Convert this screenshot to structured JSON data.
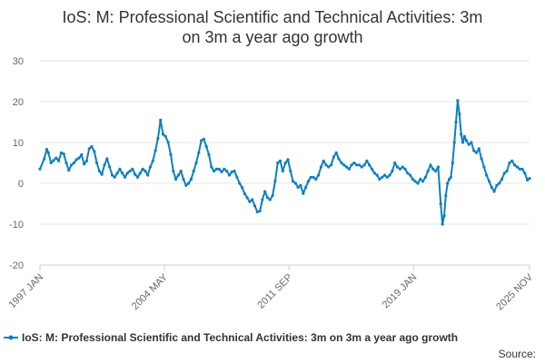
{
  "chart_data": {
    "type": "line",
    "title": "IoS: M: Professional Scientific and Technical Activities: 3m on 3m a year ago growth",
    "title_lines": [
      "IoS: M: Professional Scientific and Technical Activities: 3m",
      "on 3m a year ago growth"
    ],
    "xlabel": "",
    "ylabel": "",
    "ylim": [
      -20,
      30
    ],
    "yticks": [
      30,
      20,
      10,
      0,
      -10,
      -20
    ],
    "x_range": [
      1997.0,
      2025.83
    ],
    "xtick_labels": [
      {
        "label": "1997 JAN",
        "x": 1997.0
      },
      {
        "label": "2004 MAY",
        "x": 2004.33
      },
      {
        "label": "2011 SEP",
        "x": 2011.67
      },
      {
        "label": "2019 JAN",
        "x": 2019.0
      },
      {
        "label": "2025 NOV",
        "x": 2025.83
      }
    ],
    "grid": true,
    "legend_position": "bottom",
    "series": [
      {
        "name": "IoS: M: Professional Scientific and Technical Activities: 3m on 3m a year ago growth",
        "color": "#0d7fc0",
        "points": [
          [
            1997.0,
            3.5
          ],
          [
            1997.25,
            6.0
          ],
          [
            1997.4,
            8.3
          ],
          [
            1997.5,
            7.5
          ],
          [
            1997.65,
            5.0
          ],
          [
            1997.8,
            5.6
          ],
          [
            1997.95,
            6.2
          ],
          [
            1998.1,
            5.5
          ],
          [
            1998.25,
            7.5
          ],
          [
            1998.4,
            7.2
          ],
          [
            1998.55,
            5.0
          ],
          [
            1998.7,
            3.2
          ],
          [
            1998.85,
            4.5
          ],
          [
            1999.0,
            5.0
          ],
          [
            1999.15,
            5.8
          ],
          [
            1999.3,
            6.2
          ],
          [
            1999.45,
            7.0
          ],
          [
            1999.6,
            4.7
          ],
          [
            1999.75,
            5.5
          ],
          [
            1999.9,
            8.5
          ],
          [
            2000.05,
            9.0
          ],
          [
            2000.2,
            7.8
          ],
          [
            2000.35,
            5.0
          ],
          [
            2000.5,
            3.0
          ],
          [
            2000.65,
            2.2
          ],
          [
            2000.8,
            4.5
          ],
          [
            2000.95,
            6.0
          ],
          [
            2001.1,
            4.0
          ],
          [
            2001.25,
            2.0
          ],
          [
            2001.4,
            1.5
          ],
          [
            2001.55,
            2.5
          ],
          [
            2001.7,
            3.5
          ],
          [
            2001.85,
            2.5
          ],
          [
            2002.0,
            1.5
          ],
          [
            2002.15,
            2.5
          ],
          [
            2002.3,
            3.0
          ],
          [
            2002.45,
            3.5
          ],
          [
            2002.6,
            2.2
          ],
          [
            2002.75,
            1.5
          ],
          [
            2002.9,
            2.5
          ],
          [
            2003.05,
            3.5
          ],
          [
            2003.2,
            3.0
          ],
          [
            2003.35,
            2.0
          ],
          [
            2003.5,
            4.0
          ],
          [
            2003.65,
            5.5
          ],
          [
            2003.8,
            8.0
          ],
          [
            2003.95,
            11.0
          ],
          [
            2004.1,
            15.5
          ],
          [
            2004.25,
            12.0
          ],
          [
            2004.4,
            11.5
          ],
          [
            2004.55,
            10.0
          ],
          [
            2004.7,
            7.0
          ],
          [
            2004.85,
            3.0
          ],
          [
            2005.0,
            1.0
          ],
          [
            2005.15,
            2.0
          ],
          [
            2005.3,
            3.0
          ],
          [
            2005.45,
            1.0
          ],
          [
            2005.6,
            -0.5
          ],
          [
            2005.75,
            0.0
          ],
          [
            2005.9,
            1.0
          ],
          [
            2006.05,
            3.0
          ],
          [
            2006.2,
            5.0
          ],
          [
            2006.35,
            7.5
          ],
          [
            2006.5,
            10.5
          ],
          [
            2006.65,
            10.8
          ],
          [
            2006.8,
            9.0
          ],
          [
            2006.95,
            7.0
          ],
          [
            2007.1,
            4.0
          ],
          [
            2007.25,
            3.0
          ],
          [
            2007.4,
            3.5
          ],
          [
            2007.55,
            3.5
          ],
          [
            2007.7,
            2.8
          ],
          [
            2007.85,
            3.5
          ],
          [
            2008.0,
            3.0
          ],
          [
            2008.15,
            2.0
          ],
          [
            2008.3,
            2.8
          ],
          [
            2008.45,
            3.0
          ],
          [
            2008.6,
            1.5
          ],
          [
            2008.75,
            0.0
          ],
          [
            2008.9,
            -1.0
          ],
          [
            2009.05,
            -2.5
          ],
          [
            2009.2,
            -3.5
          ],
          [
            2009.35,
            -4.5
          ],
          [
            2009.5,
            -4.0
          ],
          [
            2009.65,
            -5.5
          ],
          [
            2009.8,
            -7.0
          ],
          [
            2009.95,
            -6.8
          ],
          [
            2010.1,
            -4.0
          ],
          [
            2010.25,
            -2.0
          ],
          [
            2010.4,
            -3.5
          ],
          [
            2010.55,
            -4.0
          ],
          [
            2010.7,
            -3.0
          ],
          [
            2010.85,
            0.5
          ],
          [
            2011.0,
            5.0
          ],
          [
            2011.15,
            5.5
          ],
          [
            2011.3,
            3.0
          ],
          [
            2011.45,
            5.0
          ],
          [
            2011.6,
            5.8
          ],
          [
            2011.75,
            3.0
          ],
          [
            2011.9,
            0.5
          ],
          [
            2012.05,
            0.0
          ],
          [
            2012.2,
            -1.0
          ],
          [
            2012.35,
            -0.5
          ],
          [
            2012.5,
            -2.5
          ],
          [
            2012.65,
            -1.0
          ],
          [
            2012.8,
            0.5
          ],
          [
            2012.95,
            1.5
          ],
          [
            2013.1,
            1.5
          ],
          [
            2013.25,
            1.0
          ],
          [
            2013.4,
            2.0
          ],
          [
            2013.55,
            4.0
          ],
          [
            2013.7,
            5.5
          ],
          [
            2013.85,
            4.5
          ],
          [
            2014.0,
            4.0
          ],
          [
            2014.15,
            4.5
          ],
          [
            2014.3,
            6.5
          ],
          [
            2014.45,
            7.5
          ],
          [
            2014.6,
            6.0
          ],
          [
            2014.75,
            5.0
          ],
          [
            2014.9,
            4.5
          ],
          [
            2015.05,
            4.0
          ],
          [
            2015.2,
            3.5
          ],
          [
            2015.35,
            4.5
          ],
          [
            2015.5,
            5.0
          ],
          [
            2015.65,
            4.5
          ],
          [
            2015.8,
            4.5
          ],
          [
            2015.95,
            4.0
          ],
          [
            2016.1,
            4.5
          ],
          [
            2016.25,
            5.5
          ],
          [
            2016.4,
            4.5
          ],
          [
            2016.55,
            3.5
          ],
          [
            2016.7,
            2.5
          ],
          [
            2016.85,
            2.0
          ],
          [
            2017.0,
            1.0
          ],
          [
            2017.15,
            1.5
          ],
          [
            2017.3,
            2.0
          ],
          [
            2017.45,
            1.5
          ],
          [
            2017.6,
            2.0
          ],
          [
            2017.75,
            3.0
          ],
          [
            2017.9,
            5.0
          ],
          [
            2018.05,
            4.0
          ],
          [
            2018.2,
            3.5
          ],
          [
            2018.35,
            4.0
          ],
          [
            2018.5,
            3.5
          ],
          [
            2018.65,
            2.5
          ],
          [
            2018.8,
            2.0
          ],
          [
            2018.95,
            1.0
          ],
          [
            2019.1,
            0.5
          ],
          [
            2019.25,
            0.0
          ],
          [
            2019.4,
            1.0
          ],
          [
            2019.55,
            0.5
          ],
          [
            2019.7,
            1.5
          ],
          [
            2019.85,
            3.0
          ],
          [
            2020.0,
            4.5
          ],
          [
            2020.15,
            3.5
          ],
          [
            2020.3,
            3.0
          ],
          [
            2020.45,
            4.0
          ],
          [
            2020.6,
            -5.0
          ],
          [
            2020.7,
            -10.0
          ],
          [
            2020.8,
            -8.0
          ],
          [
            2020.9,
            -3.0
          ],
          [
            2021.0,
            0.0
          ],
          [
            2021.1,
            1.0
          ],
          [
            2021.2,
            1.5
          ],
          [
            2021.3,
            5.0
          ],
          [
            2021.4,
            10.0
          ],
          [
            2021.5,
            15.0
          ],
          [
            2021.6,
            20.3
          ],
          [
            2021.7,
            17.0
          ],
          [
            2021.8,
            12.0
          ],
          [
            2021.9,
            10.0
          ],
          [
            2022.0,
            11.5
          ],
          [
            2022.1,
            10.5
          ],
          [
            2022.25,
            9.5
          ],
          [
            2022.4,
            10.0
          ],
          [
            2022.55,
            8.0
          ],
          [
            2022.7,
            7.5
          ],
          [
            2022.85,
            8.5
          ],
          [
            2023.0,
            6.0
          ],
          [
            2023.15,
            4.0
          ],
          [
            2023.3,
            2.0
          ],
          [
            2023.45,
            0.5
          ],
          [
            2023.6,
            -1.0
          ],
          [
            2023.75,
            -2.0
          ],
          [
            2023.9,
            -0.5
          ],
          [
            2024.05,
            0.0
          ],
          [
            2024.2,
            1.0
          ],
          [
            2024.35,
            2.5
          ],
          [
            2024.5,
            3.0
          ],
          [
            2024.65,
            5.0
          ],
          [
            2024.8,
            5.5
          ],
          [
            2024.95,
            4.5
          ],
          [
            2025.1,
            4.0
          ],
          [
            2025.25,
            3.5
          ],
          [
            2025.4,
            3.5
          ],
          [
            2025.55,
            2.5
          ],
          [
            2025.7,
            0.8
          ],
          [
            2025.83,
            1.2
          ]
        ]
      }
    ],
    "legend_label": "IoS: M: Professional Scientific and Technical Activities: 3m on 3m a year ago growth",
    "source_label": "Source:"
  }
}
